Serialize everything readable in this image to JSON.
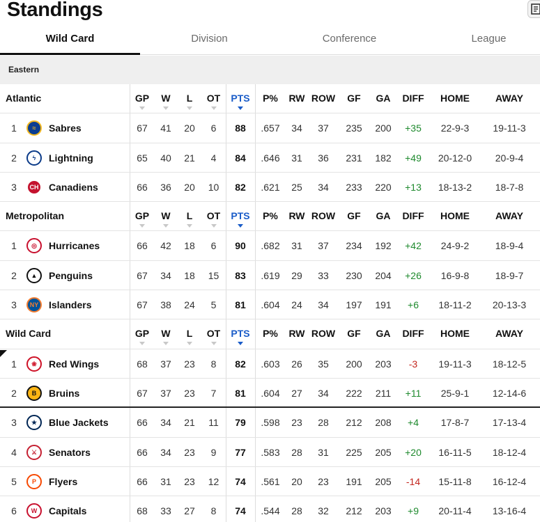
{
  "page": {
    "title": "Standings"
  },
  "tabs": [
    {
      "label": "Wild Card",
      "active": true
    },
    {
      "label": "Division",
      "active": false
    },
    {
      "label": "Conference",
      "active": false
    },
    {
      "label": "League",
      "active": false
    }
  ],
  "conference": "Eastern",
  "columns": [
    "GP",
    "W",
    "L",
    "OT",
    "PTS",
    "P%",
    "RW",
    "ROW",
    "GF",
    "GA",
    "DIFF",
    "HOME",
    "AWAY"
  ],
  "sorted_column": "PTS",
  "groups": [
    {
      "name": "Atlantic",
      "teams": [
        {
          "rank": "1",
          "name": "Sabres",
          "logo": "sabres-logo",
          "gp": "67",
          "w": "41",
          "l": "20",
          "ot": "6",
          "pts": "88",
          "pp": ".657",
          "rw": "34",
          "row": "37",
          "gf": "235",
          "ga": "200",
          "diff": "+35",
          "home": "22-9-3",
          "away": "19-11-3"
        },
        {
          "rank": "2",
          "name": "Lightning",
          "logo": "lightning-logo",
          "gp": "65",
          "w": "40",
          "l": "21",
          "ot": "4",
          "pts": "84",
          "pp": ".646",
          "rw": "31",
          "row": "36",
          "gf": "231",
          "ga": "182",
          "diff": "+49",
          "home": "20-12-0",
          "away": "20-9-4"
        },
        {
          "rank": "3",
          "name": "Canadiens",
          "logo": "canadiens-logo",
          "gp": "66",
          "w": "36",
          "l": "20",
          "ot": "10",
          "pts": "82",
          "pp": ".621",
          "rw": "25",
          "row": "34",
          "gf": "233",
          "ga": "220",
          "diff": "+13",
          "home": "18-13-2",
          "away": "18-7-8"
        }
      ]
    },
    {
      "name": "Metropolitan",
      "teams": [
        {
          "rank": "1",
          "name": "Hurricanes",
          "logo": "hurricanes-logo",
          "gp": "66",
          "w": "42",
          "l": "18",
          "ot": "6",
          "pts": "90",
          "pp": ".682",
          "rw": "31",
          "row": "37",
          "gf": "234",
          "ga": "192",
          "diff": "+42",
          "home": "24-9-2",
          "away": "18-9-4"
        },
        {
          "rank": "2",
          "name": "Penguins",
          "logo": "penguins-logo",
          "gp": "67",
          "w": "34",
          "l": "18",
          "ot": "15",
          "pts": "83",
          "pp": ".619",
          "rw": "29",
          "row": "33",
          "gf": "230",
          "ga": "204",
          "diff": "+26",
          "home": "16-9-8",
          "away": "18-9-7"
        },
        {
          "rank": "3",
          "name": "Islanders",
          "logo": "islanders-logo",
          "gp": "67",
          "w": "38",
          "l": "24",
          "ot": "5",
          "pts": "81",
          "pp": ".604",
          "rw": "24",
          "row": "34",
          "gf": "197",
          "ga": "191",
          "diff": "+6",
          "home": "18-11-2",
          "away": "20-13-3"
        }
      ]
    },
    {
      "name": "Wild Card",
      "teams": [
        {
          "rank": "1",
          "name": "Red Wings",
          "logo": "red-wings-logo",
          "gp": "68",
          "w": "37",
          "l": "23",
          "ot": "8",
          "pts": "82",
          "pp": ".603",
          "rw": "26",
          "row": "35",
          "gf": "200",
          "ga": "203",
          "diff": "-3",
          "home": "19-11-3",
          "away": "18-12-5"
        },
        {
          "rank": "2",
          "name": "Bruins",
          "logo": "bruins-logo",
          "gp": "67",
          "w": "37",
          "l": "23",
          "ot": "7",
          "pts": "81",
          "pp": ".604",
          "rw": "27",
          "row": "34",
          "gf": "222",
          "ga": "211",
          "diff": "+11",
          "home": "25-9-1",
          "away": "12-14-6"
        },
        {
          "rank": "3",
          "name": "Blue Jackets",
          "logo": "blue-jackets-logo",
          "gp": "66",
          "w": "34",
          "l": "21",
          "ot": "11",
          "pts": "79",
          "pp": ".598",
          "rw": "23",
          "row": "28",
          "gf": "212",
          "ga": "208",
          "diff": "+4",
          "home": "17-8-7",
          "away": "17-13-4"
        },
        {
          "rank": "4",
          "name": "Senators",
          "logo": "senators-logo",
          "gp": "66",
          "w": "34",
          "l": "23",
          "ot": "9",
          "pts": "77",
          "pp": ".583",
          "rw": "28",
          "row": "31",
          "gf": "225",
          "ga": "205",
          "diff": "+20",
          "home": "16-11-5",
          "away": "18-12-4"
        },
        {
          "rank": "5",
          "name": "Flyers",
          "logo": "flyers-logo",
          "gp": "66",
          "w": "31",
          "l": "23",
          "ot": "12",
          "pts": "74",
          "pp": ".561",
          "rw": "20",
          "row": "23",
          "gf": "191",
          "ga": "205",
          "diff": "-14",
          "home": "15-11-8",
          "away": "16-12-4"
        },
        {
          "rank": "6",
          "name": "Capitals",
          "logo": "capitals-logo",
          "gp": "68",
          "w": "33",
          "l": "27",
          "ot": "8",
          "pts": "74",
          "pp": ".544",
          "rw": "28",
          "row": "32",
          "gf": "212",
          "ga": "203",
          "diff": "+9",
          "home": "20-11-4",
          "away": "13-16-4"
        }
      ]
    }
  ],
  "colors": {
    "accent": "#1a5cc8",
    "positive": "#1f8a2e",
    "negative": "#c3261e"
  }
}
